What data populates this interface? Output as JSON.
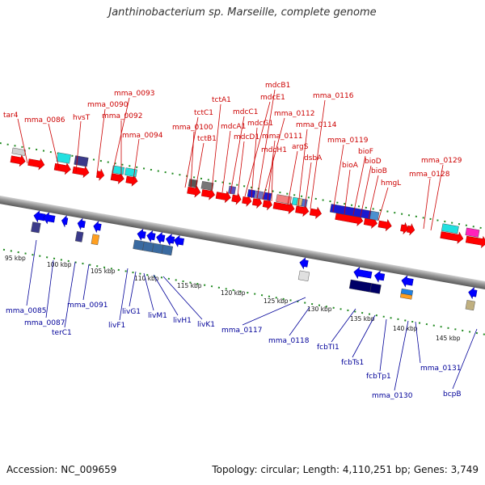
{
  "title": "Janthinobacterium sp. Marseille, complete genome",
  "footer": {
    "accession": "Accession: NC_009659",
    "summary": "Topology: circular; Length: 4,110,251 bp; Genes: 3,749"
  },
  "colors": {
    "backbone": "#8c8c8c",
    "forward_gene": "#ff0000",
    "reverse_gene": "#0000ff",
    "tick": "#228b22",
    "top_label": "#cc0000",
    "bottom_label": "#000099"
  },
  "scale_ticks": [
    "95 kbp",
    "100 kbp",
    "105 kbp",
    "110 kbp",
    "115 kbp",
    "120 kbp",
    "125 kbp",
    "130 kbp",
    "135 kbp",
    "140 kbp",
    "145 kbp"
  ],
  "top_labels": [
    "tar4",
    "mma_0086",
    "hvsT",
    "mma_0090",
    "mma_0093",
    "mma_0092",
    "mma_0094",
    "tctC1",
    "mma_0100",
    "tctB1",
    "tctA1",
    "mdcA1",
    "mdcC1",
    "mdcD1",
    "mdcE1",
    "mdcG1",
    "mdcB1",
    "mma_0112",
    "mdcH1",
    "mma_0111",
    "argS",
    "mma_0114",
    "dsbA",
    "mma_0116",
    "bioA",
    "mma_0119",
    "bioF",
    "bioD",
    "bioB",
    "hmgL",
    "mma_0128",
    "mma_0129"
  ],
  "bottom_labels": [
    "mma_0085",
    "mma_0087",
    "terC1",
    "mma_0091",
    "livF1",
    "livG1",
    "livM1",
    "livH1",
    "livK1",
    "mma_0117",
    "mma_0118",
    "fcbTI1",
    "fcbTs1",
    "fcbTp1",
    "mma_0130",
    "mma_0131",
    "bcpB"
  ]
}
